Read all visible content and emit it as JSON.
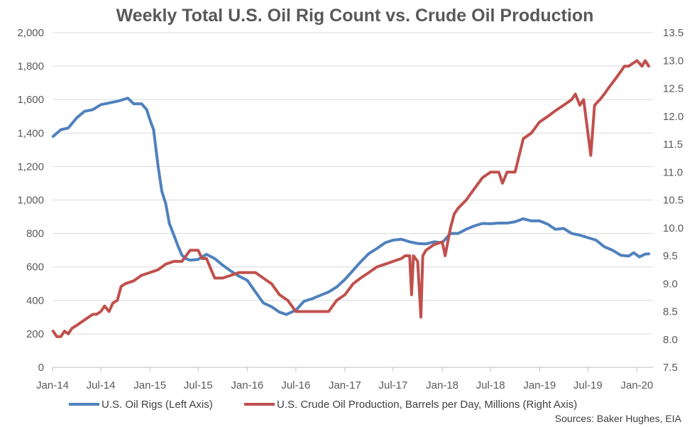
{
  "chart_data": {
    "type": "line",
    "title": "Weekly Total U.S. Oil Rig Count vs. Crude Oil Production",
    "x_tick_labels": [
      "Jan-14",
      "Jul-14",
      "Jan-15",
      "Jul-15",
      "Jan-16",
      "Jul-16",
      "Jan-17",
      "Jul-17",
      "Jan-18",
      "Jul-18",
      "Jan-19",
      "Jul-19",
      "Jan-20"
    ],
    "x_range": [
      "2014-01",
      "2020-03"
    ],
    "left_axis": {
      "ylim": [
        0,
        2000
      ],
      "ticks": [
        "0",
        "200",
        "400",
        "600",
        "800",
        "1,000",
        "1,200",
        "1,400",
        "1,600",
        "1,800",
        "2,000"
      ]
    },
    "right_axis": {
      "ylim": [
        7.5,
        13.5
      ],
      "ticks": [
        "7.5",
        "8.0",
        "8.5",
        "9.0",
        "9.5",
        "10.0",
        "10.5",
        "11.0",
        "11.5",
        "12.0",
        "12.5",
        "13.0",
        "13.5"
      ]
    },
    "grid": true,
    "legend_position": "bottom",
    "series": [
      {
        "name": "U.S. Oil Rigs (Left Axis)",
        "axis": "left",
        "color": "#4F81BD",
        "points": [
          [
            "2014-01-03",
            1380
          ],
          [
            "2014-02-01",
            1420
          ],
          [
            "2014-03-01",
            1430
          ],
          [
            "2014-04-01",
            1490
          ],
          [
            "2014-05-01",
            1530
          ],
          [
            "2014-06-01",
            1540
          ],
          [
            "2014-07-01",
            1570
          ],
          [
            "2014-08-01",
            1580
          ],
          [
            "2014-09-01",
            1590
          ],
          [
            "2014-10-10",
            1609
          ],
          [
            "2014-11-01",
            1575
          ],
          [
            "2014-12-01",
            1575
          ],
          [
            "2014-12-20",
            1540
          ],
          [
            "2015-01-01",
            1480
          ],
          [
            "2015-01-15",
            1420
          ],
          [
            "2015-02-01",
            1200
          ],
          [
            "2015-02-15",
            1050
          ],
          [
            "2015-03-01",
            980
          ],
          [
            "2015-03-15",
            860
          ],
          [
            "2015-04-01",
            790
          ],
          [
            "2015-04-15",
            730
          ],
          [
            "2015-05-01",
            670
          ],
          [
            "2015-05-15",
            650
          ],
          [
            "2015-06-01",
            640
          ],
          [
            "2015-07-01",
            645
          ],
          [
            "2015-08-01",
            675
          ],
          [
            "2015-09-01",
            650
          ],
          [
            "2015-10-01",
            610
          ],
          [
            "2015-11-01",
            575
          ],
          [
            "2015-12-01",
            545
          ],
          [
            "2016-01-01",
            520
          ],
          [
            "2016-02-01",
            450
          ],
          [
            "2016-03-01",
            385
          ],
          [
            "2016-04-01",
            362
          ],
          [
            "2016-05-01",
            330
          ],
          [
            "2016-05-27",
            316
          ],
          [
            "2016-07-01",
            341
          ],
          [
            "2016-08-01",
            395
          ],
          [
            "2016-09-01",
            410
          ],
          [
            "2016-10-01",
            430
          ],
          [
            "2016-11-01",
            450
          ],
          [
            "2016-12-01",
            480
          ],
          [
            "2017-01-01",
            525
          ],
          [
            "2017-02-01",
            580
          ],
          [
            "2017-03-01",
            630
          ],
          [
            "2017-04-01",
            680
          ],
          [
            "2017-05-01",
            710
          ],
          [
            "2017-06-01",
            745
          ],
          [
            "2017-07-01",
            760
          ],
          [
            "2017-08-01",
            765
          ],
          [
            "2017-09-01",
            750
          ],
          [
            "2017-10-01",
            740
          ],
          [
            "2017-11-01",
            738
          ],
          [
            "2017-12-01",
            750
          ],
          [
            "2018-01-01",
            745
          ],
          [
            "2018-02-01",
            800
          ],
          [
            "2018-03-01",
            800
          ],
          [
            "2018-04-01",
            825
          ],
          [
            "2018-05-01",
            845
          ],
          [
            "2018-06-01",
            860
          ],
          [
            "2018-07-01",
            858
          ],
          [
            "2018-08-01",
            862
          ],
          [
            "2018-09-01",
            862
          ],
          [
            "2018-10-01",
            870
          ],
          [
            "2018-11-01",
            888
          ],
          [
            "2018-12-01",
            875
          ],
          [
            "2019-01-01",
            875
          ],
          [
            "2019-02-01",
            855
          ],
          [
            "2019-03-01",
            825
          ],
          [
            "2019-04-01",
            830
          ],
          [
            "2019-05-01",
            800
          ],
          [
            "2019-06-01",
            790
          ],
          [
            "2019-07-01",
            775
          ],
          [
            "2019-08-01",
            760
          ],
          [
            "2019-09-01",
            720
          ],
          [
            "2019-10-01",
            700
          ],
          [
            "2019-11-01",
            670
          ],
          [
            "2019-12-01",
            665
          ],
          [
            "2019-12-20",
            685
          ],
          [
            "2020-01-10",
            660
          ],
          [
            "2020-01-31",
            676
          ],
          [
            "2020-02-14",
            678
          ]
        ]
      },
      {
        "name": "U.S. Crude Oil Production, Barrels per Day, Millions (Right Axis)",
        "axis": "right",
        "color": "#C0504D",
        "points": [
          [
            "2014-01-03",
            8.15
          ],
          [
            "2014-01-17",
            8.05
          ],
          [
            "2014-02-01",
            8.05
          ],
          [
            "2014-02-15",
            8.15
          ],
          [
            "2014-03-01",
            8.1
          ],
          [
            "2014-03-15",
            8.2
          ],
          [
            "2014-04-01",
            8.25
          ],
          [
            "2014-05-01",
            8.35
          ],
          [
            "2014-06-01",
            8.45
          ],
          [
            "2014-06-15",
            8.45
          ],
          [
            "2014-07-01",
            8.5
          ],
          [
            "2014-07-15",
            8.6
          ],
          [
            "2014-08-01",
            8.5
          ],
          [
            "2014-08-15",
            8.65
          ],
          [
            "2014-09-01",
            8.7
          ],
          [
            "2014-09-15",
            8.95
          ],
          [
            "2014-10-01",
            9.0
          ],
          [
            "2014-11-01",
            9.05
          ],
          [
            "2014-12-01",
            9.15
          ],
          [
            "2015-01-01",
            9.2
          ],
          [
            "2015-02-01",
            9.25
          ],
          [
            "2015-03-01",
            9.35
          ],
          [
            "2015-04-01",
            9.4
          ],
          [
            "2015-05-01",
            9.4
          ],
          [
            "2015-06-01",
            9.6
          ],
          [
            "2015-07-01",
            9.6
          ],
          [
            "2015-07-15",
            9.45
          ],
          [
            "2015-08-01",
            9.45
          ],
          [
            "2015-09-01",
            9.1
          ],
          [
            "2015-10-01",
            9.1
          ],
          [
            "2015-11-01",
            9.15
          ],
          [
            "2015-12-01",
            9.2
          ],
          [
            "2016-01-01",
            9.2
          ],
          [
            "2016-02-01",
            9.2
          ],
          [
            "2016-03-01",
            9.1
          ],
          [
            "2016-04-01",
            9.0
          ],
          [
            "2016-05-01",
            8.8
          ],
          [
            "2016-06-01",
            8.7
          ],
          [
            "2016-07-01",
            8.5
          ],
          [
            "2016-08-01",
            8.5
          ],
          [
            "2016-09-01",
            8.5
          ],
          [
            "2016-10-01",
            8.5
          ],
          [
            "2016-11-01",
            8.5
          ],
          [
            "2016-12-01",
            8.7
          ],
          [
            "2017-01-01",
            8.8
          ],
          [
            "2017-02-01",
            9.0
          ],
          [
            "2017-03-01",
            9.1
          ],
          [
            "2017-04-01",
            9.2
          ],
          [
            "2017-05-01",
            9.3
          ],
          [
            "2017-06-01",
            9.35
          ],
          [
            "2017-07-01",
            9.4
          ],
          [
            "2017-08-01",
            9.45
          ],
          [
            "2017-08-15",
            9.5
          ],
          [
            "2017-09-01",
            9.5
          ],
          [
            "2017-09-08",
            8.8
          ],
          [
            "2017-09-15",
            9.5
          ],
          [
            "2017-10-01",
            9.4
          ],
          [
            "2017-10-13",
            8.4
          ],
          [
            "2017-10-20",
            9.5
          ],
          [
            "2017-11-01",
            9.6
          ],
          [
            "2017-12-01",
            9.7
          ],
          [
            "2018-01-01",
            9.75
          ],
          [
            "2018-01-12",
            9.5
          ],
          [
            "2018-02-01",
            10.0
          ],
          [
            "2018-02-15",
            10.25
          ],
          [
            "2018-03-01",
            10.35
          ],
          [
            "2018-04-01",
            10.5
          ],
          [
            "2018-05-01",
            10.7
          ],
          [
            "2018-06-01",
            10.9
          ],
          [
            "2018-07-01",
            11.0
          ],
          [
            "2018-08-01",
            11.0
          ],
          [
            "2018-08-15",
            10.8
          ],
          [
            "2018-09-01",
            11.0
          ],
          [
            "2018-10-01",
            11.0
          ],
          [
            "2018-11-01",
            11.6
          ],
          [
            "2018-12-01",
            11.7
          ],
          [
            "2019-01-01",
            11.9
          ],
          [
            "2019-02-01",
            12.0
          ],
          [
            "2019-03-01",
            12.1
          ],
          [
            "2019-04-01",
            12.2
          ],
          [
            "2019-05-01",
            12.3
          ],
          [
            "2019-05-15",
            12.4
          ],
          [
            "2019-06-01",
            12.2
          ],
          [
            "2019-06-15",
            12.3
          ],
          [
            "2019-07-12",
            11.3
          ],
          [
            "2019-07-26",
            12.2
          ],
          [
            "2019-08-15",
            12.3
          ],
          [
            "2019-09-01",
            12.4
          ],
          [
            "2019-09-15",
            12.5
          ],
          [
            "2019-10-01",
            12.6
          ],
          [
            "2019-11-01",
            12.8
          ],
          [
            "2019-11-15",
            12.9
          ],
          [
            "2019-12-01",
            12.9
          ],
          [
            "2020-01-01",
            13.0
          ],
          [
            "2020-01-20",
            12.9
          ],
          [
            "2020-02-01",
            13.0
          ],
          [
            "2020-02-14",
            12.9
          ]
        ]
      }
    ],
    "source": "Sources: Baker Hughes, EIA"
  }
}
